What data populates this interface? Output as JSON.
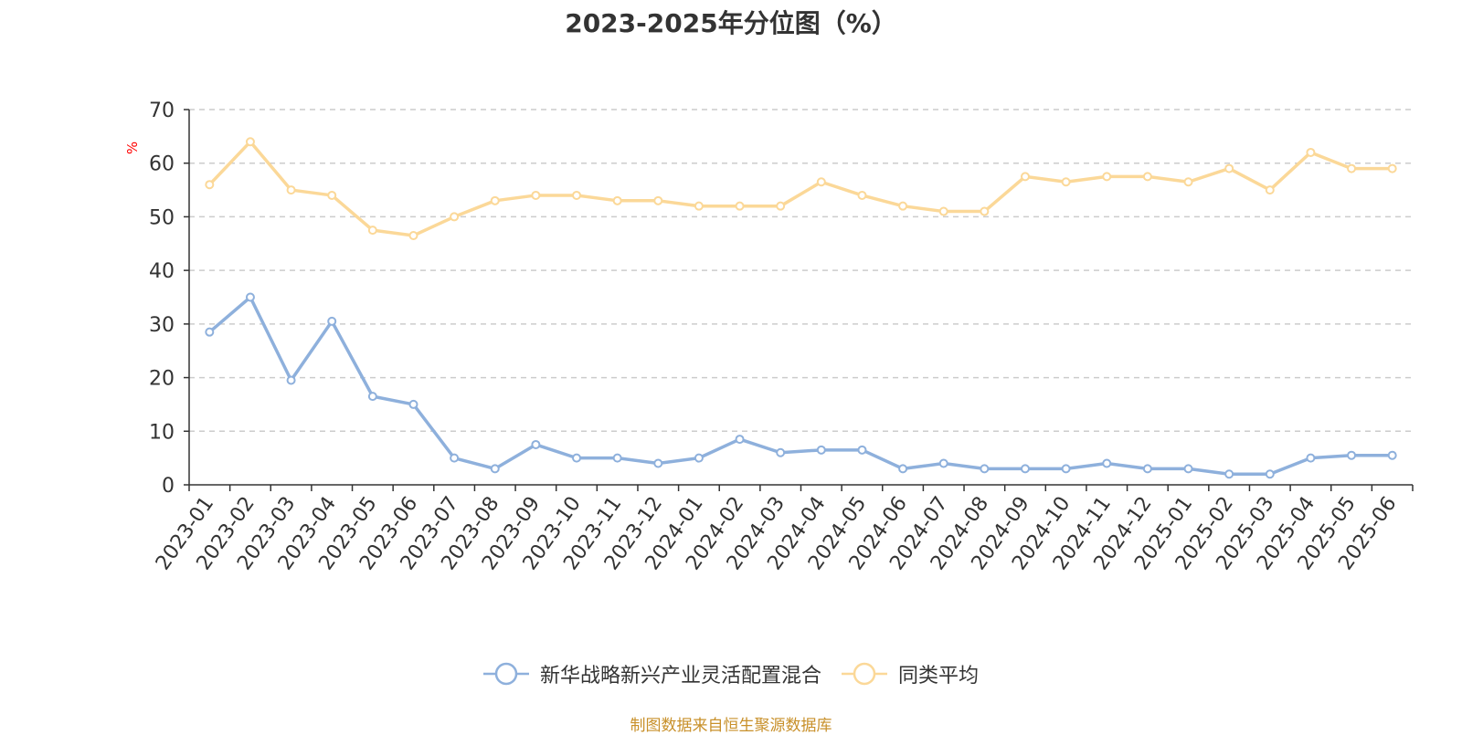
{
  "chart_data": {
    "type": "line",
    "title": "2023-2025年分位图（%）",
    "ylabel": "%",
    "xlabel": "",
    "ylim": [
      0,
      70
    ],
    "yticks": [
      0,
      10,
      20,
      30,
      40,
      50,
      60,
      70
    ],
    "grid": true,
    "legend_position": "bottom",
    "categories": [
      "2023-01",
      "2023-02",
      "2023-03",
      "2023-04",
      "2023-05",
      "2023-06",
      "2023-07",
      "2023-08",
      "2023-09",
      "2023-10",
      "2023-11",
      "2023-12",
      "2024-01",
      "2024-02",
      "2024-03",
      "2024-04",
      "2024-05",
      "2024-06",
      "2024-07",
      "2024-08",
      "2024-09",
      "2024-10",
      "2024-11",
      "2024-12",
      "2025-01",
      "2025-02",
      "2025-03",
      "2025-04",
      "2025-05",
      "2025-06"
    ],
    "series": [
      {
        "name": "新华战略新兴产业灵活配置混合",
        "color": "#8eb0dc",
        "values": [
          28.5,
          35,
          19.5,
          30.5,
          16.5,
          15,
          5,
          3,
          7.5,
          5,
          5,
          4,
          5,
          8.5,
          6,
          6.5,
          6.5,
          3,
          4,
          3,
          3,
          3,
          4,
          3,
          3,
          2,
          2,
          5,
          5.5,
          5.5
        ]
      },
      {
        "name": "同类平均",
        "color": "#fbd898",
        "values": [
          56,
          64,
          55,
          54,
          47.5,
          46.5,
          50,
          53,
          54,
          54,
          53,
          53,
          52,
          52,
          52,
          56.5,
          54,
          52,
          51,
          51,
          57.5,
          56.5,
          57.5,
          57.5,
          56.5,
          59,
          55,
          62,
          59,
          59
        ]
      }
    ]
  },
  "footer": {
    "source": "制图数据来自恒生聚源数据库",
    "source_color": "#c8902a"
  }
}
